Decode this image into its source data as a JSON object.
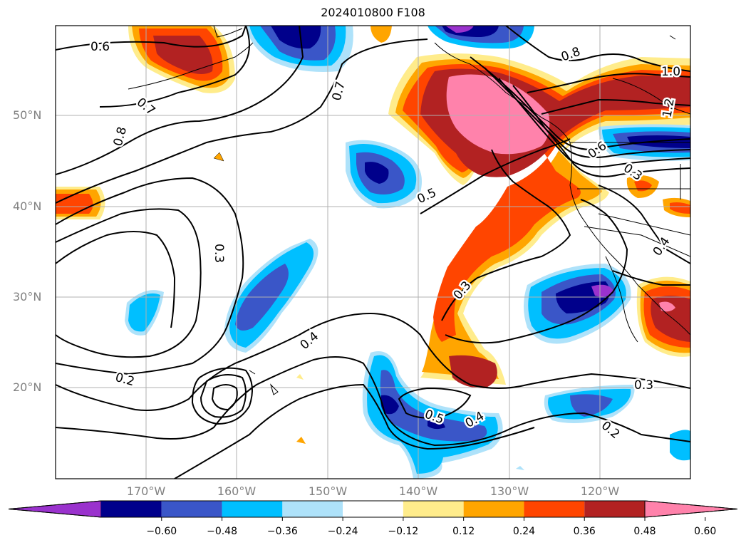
{
  "title": "2024010800 F108",
  "lat_labels": [
    "50°N",
    "40°N",
    "30°N",
    "20°N"
  ],
  "lon_labels": [
    "170°W",
    "160°W",
    "150°W",
    "140°W",
    "130°W",
    "120°W"
  ],
  "contour_labels": [
    "0.6",
    "0.7",
    "0.8",
    "0.7",
    "0.3",
    "0.5",
    "0.2",
    "0.4",
    "0.3",
    "0.5",
    "0.4",
    "0.3",
    "0.2",
    "0.8",
    "1.0",
    "1.2",
    "0.6",
    "0.3",
    "0.4"
  ],
  "colorbar": {
    "ticks": [
      "−0.60",
      "−0.48",
      "−0.36",
      "−0.24",
      "−0.12",
      "0.12",
      "0.24",
      "0.36",
      "0.48",
      "0.60"
    ],
    "colors": [
      "#9a32cd",
      "#00008b",
      "#3a56c8",
      "#00bfff",
      "#aee2fa",
      "#ffffff",
      "#ffec8b",
      "#ffa500",
      "#ff4500",
      "#b22222",
      "#ff82ab"
    ]
  }
}
